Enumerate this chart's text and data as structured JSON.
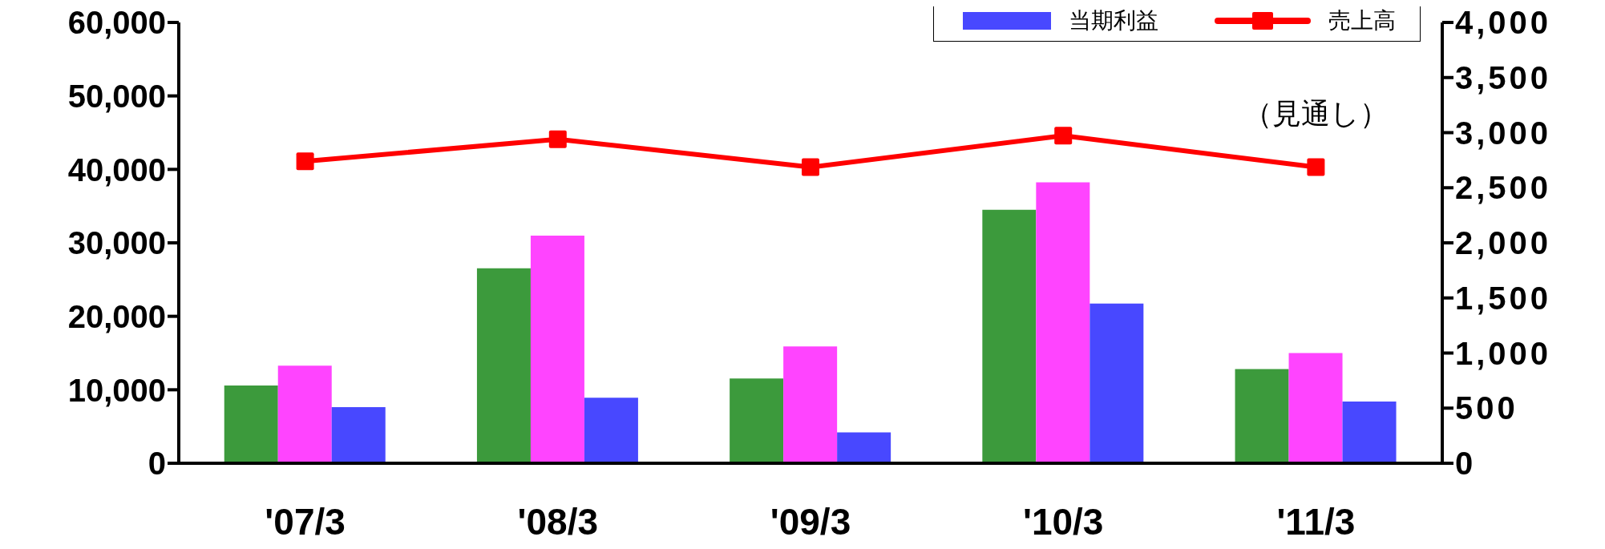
{
  "chart_data": {
    "type": "bar",
    "categories": [
      "'07/3",
      "'08/3",
      "'09/3",
      "'10/3",
      "'11/3"
    ],
    "series": [
      {
        "axis": "y2",
        "color": "#3c9a3c",
        "values": [
          705,
          1770,
          770,
          2300,
          855
        ]
      },
      {
        "axis": "y2",
        "color": "#ff44ff",
        "values": [
          885,
          2065,
          1060,
          2550,
          1000
        ]
      },
      {
        "axis": "y2",
        "name": "当期利益",
        "color": "#4848ff",
        "values": [
          510,
          595,
          280,
          1450,
          560
        ]
      },
      {
        "type": "line",
        "axis": "y",
        "name": "売上高",
        "color": "#ff0000",
        "values": [
          41100,
          44100,
          40300,
          44600,
          40300
        ]
      }
    ],
    "ylim": [
      0,
      60000
    ],
    "yticks": [
      0,
      {
        "value": 10000,
        "label": "10,000"
      },
      {
        "value": 20000,
        "label": "20,000"
      },
      {
        "value": 30000,
        "label": "30,000"
      },
      {
        "value": 40000,
        "label": "40,000"
      },
      {
        "value": 50000,
        "label": "50,000"
      },
      {
        "value": 60000,
        "label": "60,000"
      }
    ],
    "y2lim": [
      0,
      4000
    ],
    "y2ticks": [
      0,
      500,
      {
        "value": 1000,
        "label": "1,000"
      },
      {
        "value": 1500,
        "label": "1,500"
      },
      {
        "value": 2000,
        "label": "2,000"
      },
      {
        "value": 2500,
        "label": "2,500"
      },
      {
        "value": 3000,
        "label": "3,000"
      },
      {
        "value": 3500,
        "label": "3,500"
      },
      {
        "value": 4000,
        "label": "4,000"
      }
    ],
    "annotations": [
      {
        "text": "（見通し）",
        "x": "'11/3",
        "y": 40300
      }
    ],
    "grid": false,
    "legend": "top right",
    "marker": "square",
    "line_style": "solid"
  }
}
